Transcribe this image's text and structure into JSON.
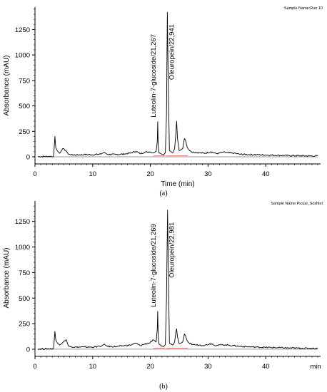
{
  "chart_data": [
    {
      "type": "line",
      "panel_label": "(a)",
      "sample_name": "Sample Name:Run 10",
      "xlabel": "Time (min)",
      "ylabel": "Absorbance (mAU)",
      "xlim": [
        0,
        49.5
      ],
      "ylim": [
        -70,
        1470
      ],
      "xticks": [
        "0",
        "10",
        "20",
        "30",
        "40"
      ],
      "xtick_values": [
        0,
        10,
        20,
        30,
        40
      ],
      "yticks": [
        "0",
        "250",
        "500",
        "750",
        "1000",
        "1250"
      ],
      "ytick_values": [
        0,
        250,
        500,
        750,
        1000,
        1250
      ],
      "grid": false,
      "series": [
        {
          "x": [
            0.5,
            3.2,
            3.35,
            3.45,
            3.6,
            3.9,
            4.3,
            4.8,
            5.4,
            5.8,
            6.3,
            7.2,
            8.5,
            10.0,
            11.5,
            12.0,
            12.5,
            14.0,
            15.5,
            16.5,
            17.5,
            18.2,
            19.0,
            19.8,
            20.6,
            21.0,
            21.2,
            21.27,
            21.35,
            21.5,
            22.0,
            22.3,
            22.6,
            22.8,
            22.94,
            23.08,
            23.3,
            23.6,
            23.9,
            24.2,
            24.4,
            24.55,
            24.7,
            25.0,
            25.3,
            25.6,
            25.9,
            26.1,
            26.4,
            26.8,
            27.5,
            28.5,
            29.5,
            30.5,
            31.5,
            32.5,
            33.5,
            34.5,
            35.5,
            37.0,
            38.5,
            40.0,
            42.0,
            44.0,
            46.0,
            48.0,
            49.0
          ],
          "y": [
            2,
            5,
            110,
            200,
            90,
            55,
            35,
            80,
            60,
            25,
            20,
            18,
            22,
            20,
            28,
            45,
            25,
            22,
            28,
            35,
            55,
            30,
            45,
            50,
            40,
            55,
            150,
            345,
            120,
            40,
            25,
            20,
            40,
            420,
            1420,
            800,
            60,
            50,
            40,
            80,
            220,
            350,
            180,
            60,
            70,
            80,
            180,
            160,
            90,
            60,
            45,
            40,
            35,
            50,
            30,
            45,
            40,
            35,
            25,
            22,
            20,
            18,
            15,
            12,
            10,
            8,
            8
          ]
        }
      ],
      "annotations": [
        {
          "text": "Luteolin-7-glucoside/21,267",
          "x": 21.27
        },
        {
          "text": "Oleuropein/22,941",
          "x": 22.94
        }
      ]
    },
    {
      "type": "line",
      "panel_label": "(b)",
      "sample_name": "Sample Name:Picual_Soxhlet",
      "xlabel": "",
      "ylabel": "Absorbance (mAU)",
      "x_unit_tick": "min",
      "xlim": [
        0,
        49.5
      ],
      "ylim": [
        -70,
        1450
      ],
      "xticks": [
        "0",
        "10",
        "20",
        "30",
        "40"
      ],
      "xtick_values": [
        0,
        10,
        20,
        30,
        40
      ],
      "yticks": [
        "0",
        "250",
        "500",
        "750",
        "1000",
        "1250"
      ],
      "ytick_values": [
        0,
        250,
        500,
        750,
        1000,
        1250
      ],
      "grid": false,
      "series": [
        {
          "x": [
            0.5,
            3.2,
            3.35,
            3.45,
            3.6,
            3.9,
            4.3,
            4.8,
            5.4,
            5.8,
            6.3,
            7.2,
            8.5,
            10.0,
            11.5,
            12.0,
            12.5,
            14.0,
            15.5,
            16.5,
            17.5,
            18.2,
            19.0,
            19.8,
            20.6,
            21.0,
            21.2,
            21.27,
            21.35,
            21.5,
            22.0,
            22.3,
            22.6,
            22.8,
            22.98,
            23.12,
            23.3,
            23.6,
            23.9,
            24.2,
            24.4,
            24.55,
            24.7,
            25.0,
            25.3,
            25.6,
            25.9,
            26.1,
            26.4,
            26.8,
            27.5,
            28.5,
            29.5,
            30.5,
            31.5,
            32.5,
            33.5,
            34.5,
            35.5,
            37.0,
            38.5,
            40.0,
            42.0,
            44.0,
            46.0,
            48.0,
            49.0
          ],
          "y": [
            2,
            5,
            100,
            175,
            90,
            60,
            40,
            65,
            95,
            30,
            25,
            20,
            22,
            20,
            30,
            50,
            28,
            25,
            35,
            40,
            60,
            35,
            50,
            60,
            90,
            70,
            200,
            370,
            140,
            50,
            30,
            25,
            45,
            500,
            1360,
            750,
            60,
            50,
            40,
            70,
            160,
            200,
            120,
            55,
            60,
            70,
            150,
            130,
            80,
            55,
            45,
            40,
            40,
            55,
            35,
            45,
            40,
            35,
            28,
            24,
            20,
            18,
            15,
            12,
            10,
            8,
            8
          ]
        }
      ],
      "annotations": [
        {
          "text": "Luteolin-7-glucoside/21,269",
          "x": 21.27
        },
        {
          "text": "Oleuropein/22,981",
          "x": 22.98
        }
      ]
    }
  ]
}
